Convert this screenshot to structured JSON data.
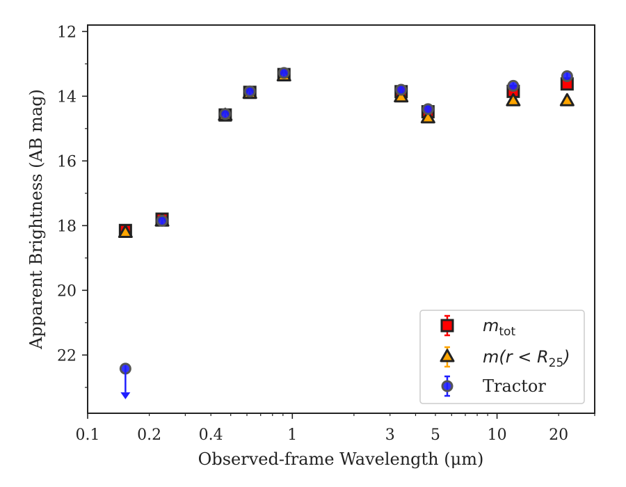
{
  "chart_data": {
    "type": "scatter",
    "title": "",
    "xlabel": "Observed-frame Wavelength (μm)",
    "ylabel": "Apparent Brightness (AB mag)",
    "xscale": "log",
    "yaxis_inverted": true,
    "xlim": [
      0.1,
      30
    ],
    "ylim": [
      23.8,
      11.8
    ],
    "x_ticks": [
      0.1,
      0.2,
      0.4,
      1,
      3,
      5,
      10,
      20
    ],
    "x_tick_labels": [
      "0.1",
      "0.2",
      "0.4",
      "1",
      "3",
      "5",
      "10",
      "20"
    ],
    "y_ticks": [
      12,
      14,
      16,
      18,
      20,
      22
    ],
    "y_tick_labels": [
      "12",
      "14",
      "16",
      "18",
      "20",
      "22"
    ],
    "grid": false,
    "legend_position": "bottom-right",
    "series": [
      {
        "name": "m_tot",
        "label_main": "m",
        "label_sub": "tot",
        "marker": "square",
        "color": "#ff0000",
        "edgecolor": "#222222",
        "x": [
          0.153,
          0.231,
          0.47,
          0.62,
          0.91,
          3.4,
          4.6,
          12.0,
          22.0
        ],
        "y": [
          18.15,
          17.8,
          14.58,
          13.88,
          13.33,
          13.86,
          14.48,
          13.85,
          13.62
        ]
      },
      {
        "name": "m(r < R25)",
        "label_main": "m(r < R",
        "label_sub": "25",
        "label_close": ")",
        "marker": "triangle",
        "color": "#ffa500",
        "edgecolor": "#222222",
        "x": [
          0.153,
          0.231,
          0.47,
          0.62,
          0.91,
          3.4,
          4.6,
          12.0,
          22.0
        ],
        "y": [
          18.22,
          17.87,
          14.6,
          13.92,
          13.38,
          14.03,
          14.68,
          14.15,
          14.15
        ]
      },
      {
        "name": "Tractor",
        "label_main": "Tractor",
        "marker": "circle",
        "color": "#1f1fff",
        "edgecolor": "#555555",
        "x": [
          0.153,
          0.231,
          0.47,
          0.62,
          0.91,
          3.4,
          4.6,
          12.0,
          22.0
        ],
        "y": [
          22.42,
          17.85,
          14.55,
          13.85,
          13.28,
          13.8,
          14.4,
          13.68,
          13.38
        ],
        "upper_limit_index": 0
      }
    ]
  }
}
